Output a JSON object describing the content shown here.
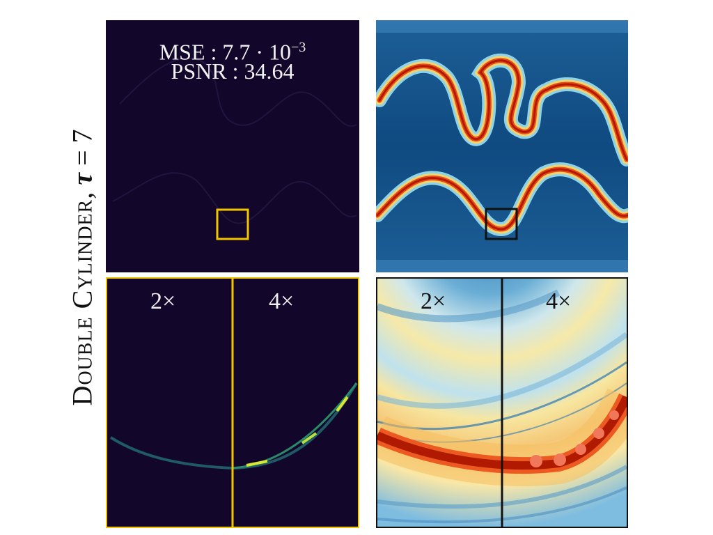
{
  "title": {
    "label": "Double Cylinder",
    "separator": ", ",
    "tau_symbol": "τ",
    "equals": " = ",
    "tau_value": "7"
  },
  "metrics": {
    "mse_label": "MSE",
    "mse_value": "7.7 · 10",
    "mse_exponent": "−3",
    "psnr_label": "PSNR",
    "psnr_value": "34.64"
  },
  "zoom_labels": {
    "left": "2×",
    "right": "4×"
  },
  "colors": {
    "error_background": "#12062b",
    "error_box": "#f2c500",
    "field_background": "#14528a",
    "field_box": "#111111",
    "vortex_core": "#b01a00",
    "vortex_edge": "#f5d36a"
  }
}
